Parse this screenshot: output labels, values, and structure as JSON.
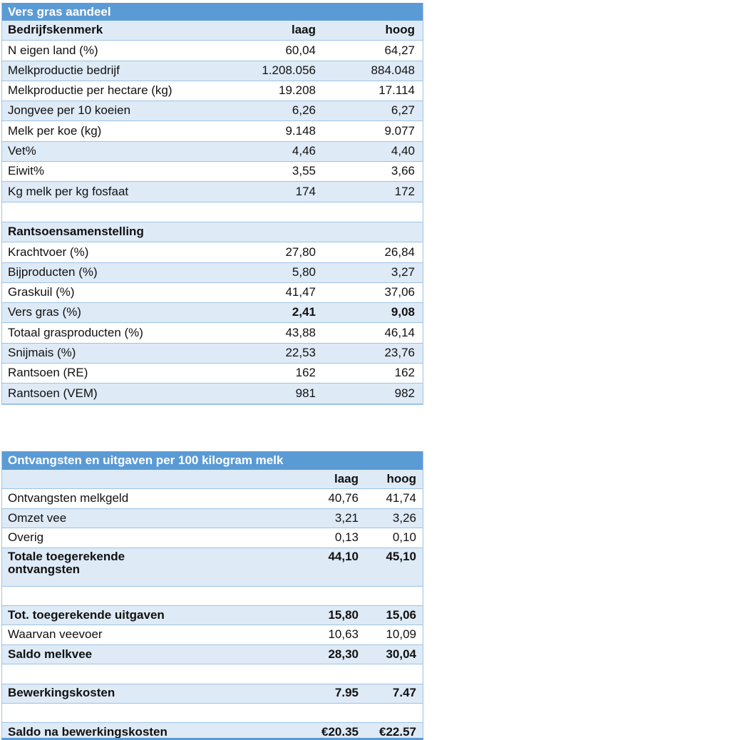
{
  "colors": {
    "header_bg": "#5B9BD5",
    "header_text": "#FFFFFF",
    "band_bg": "#DEEAF6",
    "white_bg": "#FFFFFF",
    "border": "#9DC3E6",
    "text": "#111111"
  },
  "table1": {
    "title": "Vers gras aandeel",
    "rows": [
      {
        "label": "Bedrijfskenmerk",
        "low": "laag",
        "high": "hoog",
        "band": true,
        "bold_label": true,
        "bold_values": true
      },
      {
        "label": "N eigen land (%)",
        "low": "60,04",
        "high": "64,27",
        "band": false
      },
      {
        "label": "Melkproductie bedrijf",
        "low": "1.208.056",
        "high": "884.048",
        "band": true
      },
      {
        "label": "Melkproductie per hectare (kg)",
        "low": "19.208",
        "high": "17.114",
        "band": false
      },
      {
        "label": "Jongvee per 10 koeien",
        "low": "6,26",
        "high": "6,27",
        "band": true
      },
      {
        "label": "Melk per koe (kg)",
        "low": "9.148",
        "high": "9.077",
        "band": false
      },
      {
        "label": "Vet%",
        "low": "4,46",
        "high": "4,40",
        "band": true
      },
      {
        "label": "Eiwit%",
        "low": "3,55",
        "high": "3,66",
        "band": false
      },
      {
        "label": "Kg melk per kg fosfaat",
        "low": "174",
        "high": "172",
        "band": true
      },
      {
        "label": "",
        "low": "",
        "high": "",
        "band": false
      },
      {
        "label": "Rantsoensamenstelling",
        "low": "",
        "high": "",
        "band": true,
        "bold_label": true
      },
      {
        "label": "Krachtvoer (%)",
        "low": "27,80",
        "high": "26,84",
        "band": false
      },
      {
        "label": "Bijproducten (%)",
        "low": "5,80",
        "high": "3,27",
        "band": true
      },
      {
        "label": "Graskuil (%)",
        "low": "41,47",
        "high": "37,06",
        "band": false
      },
      {
        "label": "Vers gras (%)",
        "low": "2,41",
        "high": "9,08",
        "band": true,
        "bold_values": true
      },
      {
        "label": "Totaal grasproducten (%)",
        "low": "43,88",
        "high": "46,14",
        "band": false
      },
      {
        "label": "Snijmais (%)",
        "low": "22,53",
        "high": "23,76",
        "band": true
      },
      {
        "label": "Rantsoen (RE)",
        "low": "162",
        "high": "162",
        "band": false
      },
      {
        "label": "Rantsoen (VEM)",
        "low": "981",
        "high": "982",
        "band": true
      }
    ]
  },
  "table2": {
    "title": "Ontvangsten en uitgaven per 100 kilogram melk",
    "rows": [
      {
        "label": "",
        "low": "laag",
        "high": "hoog",
        "band": true,
        "bold_values": true
      },
      {
        "label": "Ontvangsten melkgeld",
        "low": "40,76",
        "high": "41,74",
        "band": false
      },
      {
        "label": "Omzet vee",
        "low": "3,21",
        "high": "3,26",
        "band": true
      },
      {
        "label": "Overig",
        "low": "0,13",
        "high": "0,10",
        "band": false
      },
      {
        "label": "Totale toegerekende ontvangsten",
        "low": "44,10",
        "high": "45,10",
        "band": true,
        "bold_label": true,
        "bold_values": true,
        "tall": true
      },
      {
        "label": "",
        "low": "",
        "high": "",
        "band": false
      },
      {
        "label": "Tot. toegerekende uitgaven",
        "low": "15,80",
        "high": "15,06",
        "band": true,
        "bold_label": true,
        "bold_values": true
      },
      {
        "label": "Waarvan veevoer",
        "low": "10,63",
        "high": "10,09",
        "band": false
      },
      {
        "label": "Saldo melkvee",
        "low": "28,30",
        "high": "30,04",
        "band": true,
        "bold_label": true,
        "bold_values": true
      },
      {
        "label": "",
        "low": "",
        "high": "",
        "band": false
      },
      {
        "label": "Bewerkingskosten",
        "low": "7.95",
        "high": "7.47",
        "band": true,
        "bold_label": true,
        "bold_values": true
      },
      {
        "label": "",
        "low": "",
        "high": "",
        "band": false
      },
      {
        "label": "Saldo na bewerkingskosten",
        "low": "€20.35",
        "high": "€22.57",
        "band": true,
        "bold_label": true,
        "bold_values": true
      }
    ]
  }
}
